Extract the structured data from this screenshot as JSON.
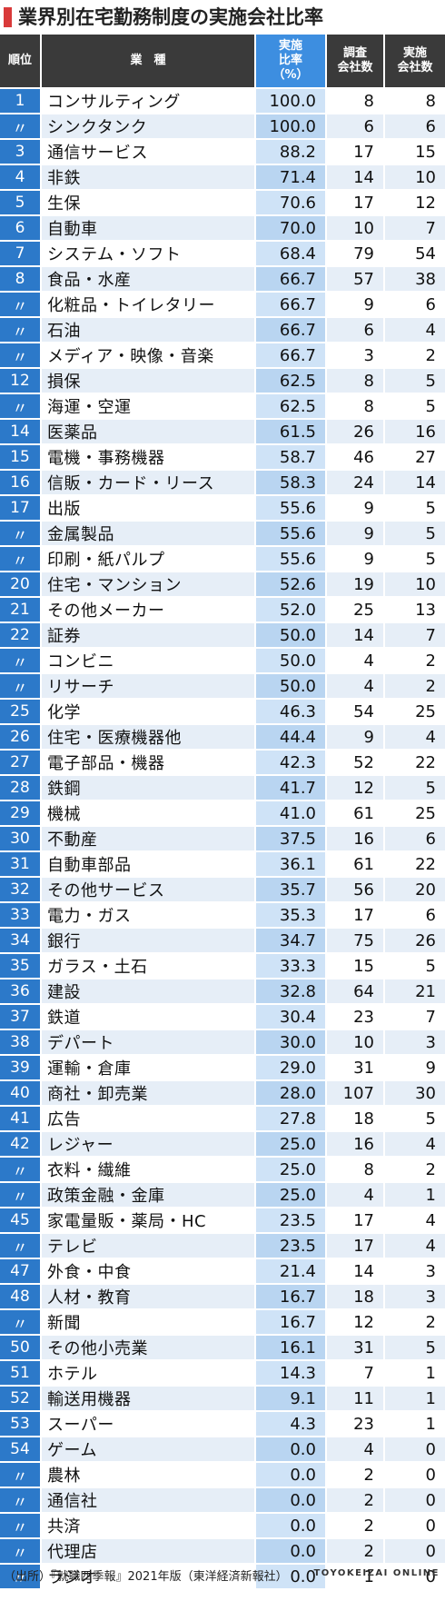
{
  "title": "業界別在宅勤務制度の実施会社比率",
  "colors": {
    "title_marker": "#d93a3a",
    "header_bg": "#3a3a3a",
    "rate_header_bg": "#3d8ee0",
    "rank_bg": "#2c79c9",
    "rate_col_bg": "#c8e0f6"
  },
  "headers": {
    "rank": "順位",
    "industry": "業　種",
    "rate": [
      "実施",
      "比率",
      "（%）"
    ],
    "surveyed": [
      "調査",
      "会社数"
    ],
    "implementing": [
      "実施",
      "会社数"
    ]
  },
  "chart_data": {
    "type": "table",
    "title": "業界別在宅勤務制度の実施会社比率",
    "columns": [
      "順位",
      "業種",
      "実施比率（%）",
      "調査会社数",
      "実施会社数"
    ],
    "rows": [
      [
        "1",
        "コンサルティング",
        "100.0",
        "8",
        "8"
      ],
      [
        "〃",
        "シンクタンク",
        "100.0",
        "6",
        "6"
      ],
      [
        "3",
        "通信サービス",
        "88.2",
        "17",
        "15"
      ],
      [
        "4",
        "非鉄",
        "71.4",
        "14",
        "10"
      ],
      [
        "5",
        "生保",
        "70.6",
        "17",
        "12"
      ],
      [
        "6",
        "自動車",
        "70.0",
        "10",
        "7"
      ],
      [
        "7",
        "システム・ソフト",
        "68.4",
        "79",
        "54"
      ],
      [
        "8",
        "食品・水産",
        "66.7",
        "57",
        "38"
      ],
      [
        "〃",
        "化粧品・トイレタリー",
        "66.7",
        "9",
        "6"
      ],
      [
        "〃",
        "石油",
        "66.7",
        "6",
        "4"
      ],
      [
        "〃",
        "メディア・映像・音楽",
        "66.7",
        "3",
        "2"
      ],
      [
        "12",
        "損保",
        "62.5",
        "8",
        "5"
      ],
      [
        "〃",
        "海運・空運",
        "62.5",
        "8",
        "5"
      ],
      [
        "14",
        "医薬品",
        "61.5",
        "26",
        "16"
      ],
      [
        "15",
        "電機・事務機器",
        "58.7",
        "46",
        "27"
      ],
      [
        "16",
        "信販・カード・リース",
        "58.3",
        "24",
        "14"
      ],
      [
        "17",
        "出版",
        "55.6",
        "9",
        "5"
      ],
      [
        "〃",
        "金属製品",
        "55.6",
        "9",
        "5"
      ],
      [
        "〃",
        "印刷・紙パルプ",
        "55.6",
        "9",
        "5"
      ],
      [
        "20",
        "住宅・マンション",
        "52.6",
        "19",
        "10"
      ],
      [
        "21",
        "その他メーカー",
        "52.0",
        "25",
        "13"
      ],
      [
        "22",
        "証券",
        "50.0",
        "14",
        "7"
      ],
      [
        "〃",
        "コンビニ",
        "50.0",
        "4",
        "2"
      ],
      [
        "〃",
        "リサーチ",
        "50.0",
        "4",
        "2"
      ],
      [
        "25",
        "化学",
        "46.3",
        "54",
        "25"
      ],
      [
        "26",
        "住宅・医療機器他",
        "44.4",
        "9",
        "4"
      ],
      [
        "27",
        "電子部品・機器",
        "42.3",
        "52",
        "22"
      ],
      [
        "28",
        "鉄鋼",
        "41.7",
        "12",
        "5"
      ],
      [
        "29",
        "機械",
        "41.0",
        "61",
        "25"
      ],
      [
        "30",
        "不動産",
        "37.5",
        "16",
        "6"
      ],
      [
        "31",
        "自動車部品",
        "36.1",
        "61",
        "22"
      ],
      [
        "32",
        "その他サービス",
        "35.7",
        "56",
        "20"
      ],
      [
        "33",
        "電力・ガス",
        "35.3",
        "17",
        "6"
      ],
      [
        "34",
        "銀行",
        "34.7",
        "75",
        "26"
      ],
      [
        "35",
        "ガラス・土石",
        "33.3",
        "15",
        "5"
      ],
      [
        "36",
        "建設",
        "32.8",
        "64",
        "21"
      ],
      [
        "37",
        "鉄道",
        "30.4",
        "23",
        "7"
      ],
      [
        "38",
        "デパート",
        "30.0",
        "10",
        "3"
      ],
      [
        "39",
        "運輸・倉庫",
        "29.0",
        "31",
        "9"
      ],
      [
        "40",
        "商社・卸売業",
        "28.0",
        "107",
        "30"
      ],
      [
        "41",
        "広告",
        "27.8",
        "18",
        "5"
      ],
      [
        "42",
        "レジャー",
        "25.0",
        "16",
        "4"
      ],
      [
        "〃",
        "衣料・繊維",
        "25.0",
        "8",
        "2"
      ],
      [
        "〃",
        "政策金融・金庫",
        "25.0",
        "4",
        "1"
      ],
      [
        "45",
        "家電量販・薬局・HC",
        "23.5",
        "17",
        "4"
      ],
      [
        "〃",
        "テレビ",
        "23.5",
        "17",
        "4"
      ],
      [
        "47",
        "外食・中食",
        "21.4",
        "14",
        "3"
      ],
      [
        "48",
        "人材・教育",
        "16.7",
        "18",
        "3"
      ],
      [
        "〃",
        "新聞",
        "16.7",
        "12",
        "2"
      ],
      [
        "50",
        "その他小売業",
        "16.1",
        "31",
        "5"
      ],
      [
        "51",
        "ホテル",
        "14.3",
        "7",
        "1"
      ],
      [
        "52",
        "輸送用機器",
        "9.1",
        "11",
        "1"
      ],
      [
        "53",
        "スーパー",
        "4.3",
        "23",
        "1"
      ],
      [
        "54",
        "ゲーム",
        "0.0",
        "4",
        "0"
      ],
      [
        "〃",
        "農林",
        "0.0",
        "2",
        "0"
      ],
      [
        "〃",
        "通信社",
        "0.0",
        "2",
        "0"
      ],
      [
        "〃",
        "共済",
        "0.0",
        "2",
        "0"
      ],
      [
        "〃",
        "代理店",
        "0.0",
        "2",
        "0"
      ],
      [
        "〃",
        "ラジオ",
        "0.0",
        "1",
        "0"
      ]
    ]
  },
  "footer": {
    "source": "（出所）『就職四季報』2021年版（東洋経済新報社）",
    "brand": "TOYOKEIZAI ONLINE"
  }
}
